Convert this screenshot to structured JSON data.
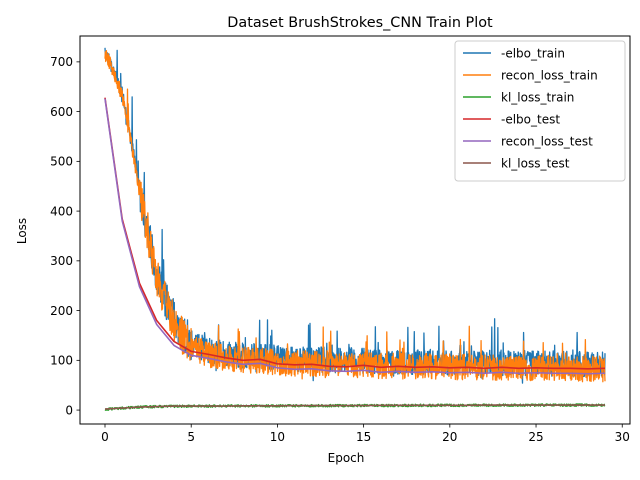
{
  "chart_data": {
    "type": "line",
    "title": "Dataset BrushStrokes_CNN Train Plot",
    "xlabel": "Epoch",
    "ylabel": "Loss",
    "xlim": [
      -1.45,
      30.45
    ],
    "ylim": [
      -28,
      752
    ],
    "xticks": [
      0,
      5,
      10,
      15,
      20,
      25,
      30
    ],
    "yticks": [
      0,
      100,
      200,
      300,
      400,
      500,
      600,
      700
    ],
    "grid": false,
    "legend_position": "top-right",
    "series": [
      {
        "name": "-elbo_train",
        "color": "#1f77b4",
        "kind": "train",
        "anchors_x": [
          0,
          0.5,
          1,
          1.5,
          2,
          2.5,
          3,
          3.5,
          4,
          4.5,
          5,
          6,
          7,
          8,
          9,
          10,
          12,
          14,
          16,
          18,
          20,
          22,
          24,
          26,
          28,
          29
        ],
        "anchors_y": [
          718,
          685,
          635,
          545,
          445,
          355,
          275,
          225,
          185,
          158,
          135,
          120,
          113,
          110,
          108,
          104,
          102,
          100,
          98,
          97,
          96,
          95,
          94,
          93,
          92,
          92
        ]
      },
      {
        "name": "recon_loss_train",
        "color": "#ff7f0e",
        "kind": "train",
        "anchors_x": [
          0,
          0.5,
          1,
          1.5,
          2,
          2.5,
          3,
          3.5,
          4,
          4.5,
          5,
          6,
          7,
          8,
          9,
          10,
          12,
          14,
          16,
          18,
          20,
          22,
          24,
          26,
          28,
          29
        ],
        "anchors_y": [
          716,
          682,
          630,
          540,
          440,
          350,
          268,
          218,
          177,
          150,
          127,
          112,
          105,
          101,
          99,
          95,
          93,
          91,
          89,
          88,
          87,
          86,
          85,
          84,
          83,
          83
        ]
      },
      {
        "name": "kl_loss_train",
        "color": "#2ca02c",
        "kind": "kl",
        "anchors_x": [
          0,
          1,
          2,
          3,
          5,
          10,
          15,
          20,
          25,
          29
        ],
        "anchors_y": [
          1,
          4,
          6,
          7,
          8,
          8.5,
          9,
          9.5,
          10,
          10
        ]
      },
      {
        "name": "-elbo_test",
        "color": "#d62728",
        "kind": "test",
        "x": [
          0,
          1,
          2,
          3,
          4,
          5,
          6,
          7,
          8,
          9,
          10,
          11,
          12,
          13,
          14,
          15,
          16,
          17,
          18,
          19,
          20,
          21,
          22,
          23,
          24,
          25,
          26,
          27,
          28,
          29
        ],
        "y": [
          628,
          384,
          255,
          180,
          138,
          118,
          112,
          105,
          100,
          102,
          93,
          91,
          92,
          88,
          87,
          90,
          86,
          88,
          86,
          87,
          85,
          86,
          84,
          86,
          84,
          85,
          84,
          84,
          83,
          84
        ]
      },
      {
        "name": "recon_loss_test",
        "color": "#9467bd",
        "kind": "test",
        "x": [
          0,
          1,
          2,
          3,
          4,
          5,
          6,
          7,
          8,
          9,
          10,
          11,
          12,
          13,
          14,
          15,
          16,
          17,
          18,
          19,
          20,
          21,
          22,
          23,
          24,
          25,
          26,
          27,
          28,
          29
        ],
        "y": [
          626,
          380,
          248,
          172,
          130,
          110,
          104,
          97,
          92,
          94,
          85,
          82,
          83,
          79,
          78,
          80,
          76,
          78,
          76,
          77,
          75,
          76,
          74,
          76,
          74,
          75,
          74,
          74,
          73,
          74
        ]
      },
      {
        "name": "kl_loss_test",
        "color": "#8c564b",
        "kind": "test",
        "x": [
          0,
          1,
          2,
          3,
          4,
          5,
          6,
          7,
          8,
          9,
          10,
          11,
          12,
          13,
          14,
          15,
          16,
          17,
          18,
          19,
          20,
          21,
          22,
          23,
          24,
          25,
          26,
          27,
          28,
          29
        ],
        "y": [
          2,
          4,
          6,
          7,
          8,
          8,
          8,
          8,
          8.5,
          8.5,
          8.5,
          9,
          9,
          9,
          9,
          9,
          9.5,
          9.5,
          9.5,
          9.5,
          9.5,
          9.5,
          10,
          10,
          10,
          10,
          10,
          10,
          10,
          10
        ]
      }
    ]
  }
}
